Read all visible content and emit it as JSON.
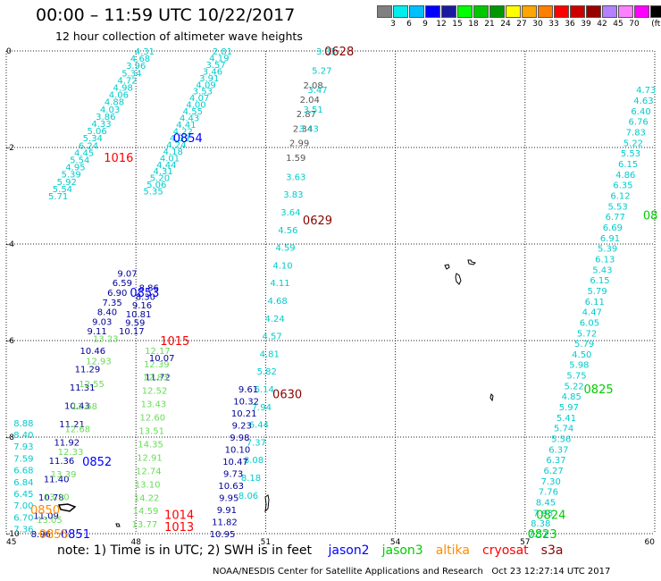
{
  "header": {
    "title": "00:00 – 11:59 UTC 10/22/2017",
    "subtitle": "12 hour collection of altimeter wave heights"
  },
  "legend": {
    "colors": [
      "#808080",
      "#00eeee",
      "#00bfff",
      "#0000ff",
      "#1a1aa0",
      "#00ff00",
      "#00c800",
      "#009600",
      "#ffff00",
      "#ffa500",
      "#ff7f00",
      "#ff0000",
      "#cc0000",
      "#990000",
      "#b380ff",
      "#ff80ff",
      "#ff00ff",
      "#000000"
    ],
    "labels": [
      "3",
      "6",
      "9",
      "12",
      "15",
      "18",
      "21",
      "24",
      "27",
      "30",
      "33",
      "36",
      "39",
      "42",
      "45",
      "70",
      "(ft)"
    ]
  },
  "map": {
    "x_ticks": [
      "45",
      "48",
      "51",
      "54",
      "57",
      "60"
    ],
    "y_ticks": [
      "0",
      "-2",
      "-4",
      "-6",
      "-8",
      "-10"
    ],
    "xlim": [
      45,
      60
    ],
    "ylim": [
      -10,
      0
    ],
    "grid": true
  },
  "colors": {
    "jason2": "#0000ff",
    "jason3": "#00cc00",
    "altika": "#ff8c00",
    "cryosat": "#ff0000",
    "s3a": "#8b0000",
    "cyan": "#00cccc",
    "lightgreen": "#66dd55",
    "navy": "#000099",
    "black": "#000000",
    "gray": "#555555"
  },
  "tracks": [
    {
      "id": "s3a-upper-left",
      "color": "cyan",
      "lon": [
        48.2,
        46.2
      ],
      "lat": [
        0.0,
        -3.0
      ],
      "values": [
        "4.31",
        "4.68",
        "3.96",
        "5.34",
        "4.72",
        "4.98",
        "4.06",
        "4.88",
        "4.03",
        "3.86",
        "4.33",
        "5.06",
        "5.34",
        "6.24",
        "4.45",
        "5.54",
        "4.95",
        "5.39",
        "5.92",
        "5.54",
        "5.71"
      ]
    },
    {
      "id": "s3a-upper-right",
      "color": "cyan",
      "lon": [
        50.0,
        48.4
      ],
      "lat": [
        0.0,
        -2.9
      ],
      "values": [
        "2.81",
        "4.19",
        "3.57",
        "3.46",
        "3.91",
        "4.09",
        "3.53",
        "4.07",
        "4.00",
        "4.55",
        "4.43",
        "4.41",
        "4.22",
        "4.39",
        "4.24",
        "4.18",
        "4.01",
        "4.44",
        "4.31",
        "5.20",
        "5.06",
        "5.35"
      ]
    },
    {
      "id": "s3a-mid-left",
      "color": "navy",
      "lon": [
        47.8,
        47.1
      ],
      "lat": [
        -4.6,
        -5.8
      ],
      "values": [
        "9.07",
        "6.59",
        "6.90",
        "7.35",
        "8.40",
        "9.03",
        "9.11"
      ]
    },
    {
      "id": "s3a-mid-right",
      "color": "navy",
      "lon": [
        48.3,
        47.9
      ],
      "lat": [
        -4.9,
        -5.8
      ],
      "values": [
        "8.86",
        "8.30",
        "9.16",
        "10.81",
        "9.59",
        "10.17"
      ]
    },
    {
      "id": "s3a-left-lower-navy",
      "color": "navy",
      "lon": [
        47.0,
        45.8
      ],
      "lat": [
        -6.2,
        -10.0
      ],
      "values": [
        "10.46",
        "11.29",
        "11.31",
        "10.43",
        "11.21",
        "11.92",
        "11.36",
        "11.40",
        "10.78",
        "11.09",
        "8.96"
      ]
    },
    {
      "id": "s3a-left-lower-green",
      "color": "lightgreen",
      "lon": [
        47.3,
        46.0
      ],
      "lat": [
        -5.95,
        -9.7
      ],
      "values": [
        "13.23",
        "12.93",
        "12.55",
        "12.68",
        "12.68",
        "12.33",
        "13.39",
        "13.20",
        "13.05"
      ]
    },
    {
      "id": "s3a-right-lower-navy",
      "color": "navy",
      "lon": [
        48.6,
        48.5
      ],
      "lat": [
        -6.35,
        -6.75
      ],
      "values": [
        "10.07",
        "11.72"
      ]
    },
    {
      "id": "s3a-right-lower-green",
      "color": "lightgreen",
      "lon": [
        48.5,
        48.2
      ],
      "lat": [
        -6.2,
        -9.8
      ],
      "values": [
        "12.17",
        "12.39",
        "12.83",
        "12.52",
        "13.43",
        "12.60",
        "13.51",
        "14.35",
        "12.91",
        "12.74",
        "13.10",
        "14.22",
        "14.59",
        "13.77"
      ]
    },
    {
      "id": "far-left-cyan",
      "color": "cyan",
      "lon": [
        45.4,
        45.4
      ],
      "lat": [
        -7.7,
        -9.9
      ],
      "values": [
        "8.88",
        "8.40",
        "7.93",
        "7.59",
        "6.68",
        "6.84",
        "6.45",
        "7.00",
        "6.70",
        "7.36"
      ]
    },
    {
      "id": "jason-track-gray",
      "color": "gray",
      "lon": [
        52.1,
        51.7
      ],
      "lat": [
        -0.7,
        -2.2
      ],
      "values": [
        "2.08",
        "2.04",
        "2.87",
        "2.34",
        "2.99",
        "1.59"
      ]
    },
    {
      "id": "jason-track-cyan-top",
      "color": "cyan",
      "lon": [
        52.4,
        52.0
      ],
      "lat": [
        0.0,
        -1.6
      ],
      "values": [
        "3.33",
        "5.27",
        "3.47",
        "3.51",
        "3.43"
      ]
    },
    {
      "id": "jason-track-cyan",
      "color": "cyan",
      "lon": [
        51.7,
        50.6
      ],
      "lat": [
        -2.6,
        -9.2
      ],
      "values": [
        "3.63",
        "3.83",
        "3.64",
        "4.56",
        "4.59",
        "4.10",
        "4.11",
        "4.68",
        "4.24",
        "4.57",
        "4.81",
        "5.82",
        "6.14",
        "7.94",
        "6.44",
        "7.37",
        "8.08",
        "8.18",
        "8.06"
      ]
    },
    {
      "id": "jason-track-navy",
      "color": "navy",
      "lon": [
        50.6,
        50.0
      ],
      "lat": [
        -7.0,
        -10.0
      ],
      "values": [
        "9.61",
        "10.32",
        "10.21",
        "9.23",
        "9.98",
        "10.10",
        "10.47",
        "9.73",
        "10.63",
        "9.95",
        "9.91",
        "11.82",
        "10.95"
      ]
    },
    {
      "id": "east-track-cyan",
      "color": "cyan",
      "lon": [
        59.8,
        57.3
      ],
      "lat": [
        -0.8,
        -10.0
      ],
      "values": [
        "4.73",
        "4.63",
        "6.40",
        "6.76",
        "7.83",
        "5.22",
        "5.53",
        "6.15",
        "4.86",
        "6.35",
        "6.12",
        "5.53",
        "6.77",
        "6.69",
        "6.91",
        "5.39",
        "6.13",
        "5.43",
        "6.15",
        "5.79",
        "6.11",
        "4.47",
        "6.05",
        "5.72",
        "5.79",
        "4.50",
        "5.98",
        "5.75",
        "5.22",
        "4.85",
        "5.97",
        "5.41",
        "5.74",
        "5.56",
        "6.37",
        "6.37",
        "6.27",
        "7.30",
        "7.76",
        "8.45",
        "7.93",
        "8.38",
        "7.52"
      ]
    }
  ],
  "time_labels": [
    {
      "text": "0628",
      "color": "s3a",
      "lon": 52.7,
      "lat": 0.0
    },
    {
      "text": "0629",
      "color": "s3a",
      "lon": 52.2,
      "lat": -3.5
    },
    {
      "text": "0630",
      "color": "s3a",
      "lon": 51.5,
      "lat": -7.1
    },
    {
      "text": "0854",
      "color": "jason2",
      "lon": 49.2,
      "lat": -1.8
    },
    {
      "text": "0853",
      "color": "jason2",
      "lon": 48.2,
      "lat": -5.0
    },
    {
      "text": "0852",
      "color": "jason2",
      "lon": 47.1,
      "lat": -8.5
    },
    {
      "text": "0851",
      "color": "jason2",
      "lon": 46.6,
      "lat": -10.0
    },
    {
      "text": "1016",
      "color": "cryosat",
      "lon": 47.6,
      "lat": -2.2
    },
    {
      "text": "1015",
      "color": "cryosat",
      "lon": 48.9,
      "lat": -6.0
    },
    {
      "text": "1014",
      "color": "cryosat",
      "lon": 49.0,
      "lat": -9.6
    },
    {
      "text": "1013",
      "color": "cryosat",
      "lon": 49.0,
      "lat": -9.85
    },
    {
      "text": "0825",
      "color": "jason3",
      "lon": 58.7,
      "lat": -7.0
    },
    {
      "text": "0824",
      "color": "jason3",
      "lon": 57.6,
      "lat": -9.6
    },
    {
      "text": "0823",
      "color": "jason3",
      "lon": 57.4,
      "lat": -10.0
    },
    {
      "text": "08",
      "color": "jason3",
      "lon": 59.9,
      "lat": -3.4
    },
    {
      "text": "0850",
      "color": "altika",
      "lon": 45.9,
      "lat": -9.5
    },
    {
      "text": "0855",
      "color": "altika",
      "lon": 46.1,
      "lat": -10.0
    }
  ],
  "note": {
    "prefix": "note:  1) Time is in UTC;  2) SWH is in feet",
    "sats": [
      {
        "label": "jason2",
        "color": "jason2"
      },
      {
        "label": "jason3",
        "color": "jason3"
      },
      {
        "label": "altika",
        "color": "altika"
      },
      {
        "label": "cryosat",
        "color": "cryosat"
      },
      {
        "label": "s3a",
        "color": "s3a"
      }
    ]
  },
  "footer": {
    "credit": "NOAA/NESDIS Center for Satellite Applications and Research",
    "timestamp": "Oct 23 12:27:14 UTC 2017"
  }
}
